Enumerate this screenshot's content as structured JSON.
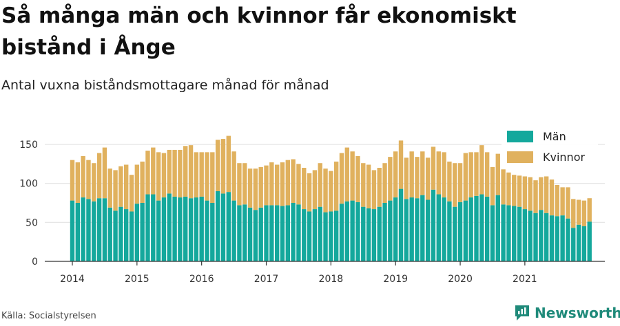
{
  "header": {
    "title": "Så många män och kvinnor får ekonomiskt bistånd i Ånge",
    "subtitle": "Antal vuxna biståndsmottagare månad för månad"
  },
  "footer": {
    "source": "Källa: Socialstyrelsen",
    "brand": "Newsworthy",
    "brand_icon": "bar-chart-logo-icon"
  },
  "colors": {
    "men": "#14a89c",
    "women": "#e0b15e",
    "axis": "#333333",
    "grid": "#e3e3e3"
  },
  "chart_data": {
    "type": "bar",
    "stacked": true,
    "x_unit": "month",
    "x_start": "2014-01",
    "xticks": [
      "2014",
      "2015",
      "2016",
      "2017",
      "2018",
      "2019",
      "2020",
      "2021"
    ],
    "yticks": [
      0,
      50,
      100,
      150
    ],
    "ylim": [
      0,
      165
    ],
    "grid": true,
    "legend_position": "top-right",
    "series": [
      {
        "name": "Män",
        "values": [
          78,
          75,
          82,
          80,
          77,
          81,
          81,
          69,
          65,
          70,
          67,
          64,
          74,
          75,
          86,
          86,
          78,
          82,
          87,
          83,
          82,
          83,
          81,
          82,
          83,
          78,
          75,
          90,
          87,
          89,
          78,
          72,
          73,
          69,
          66,
          69,
          72,
          72,
          72,
          71,
          72,
          75,
          73,
          67,
          64,
          67,
          70,
          63,
          64,
          65,
          74,
          77,
          78,
          76,
          70,
          68,
          67,
          70,
          75,
          78,
          82,
          93,
          80,
          82,
          81,
          85,
          79,
          92,
          86,
          82,
          77,
          70,
          76,
          78,
          82,
          84,
          86,
          83,
          72,
          85,
          73,
          72,
          71,
          70,
          67,
          65,
          62,
          66,
          62,
          59,
          58,
          59,
          55,
          43,
          47,
          45,
          51
        ]
      },
      {
        "name": "Kvinnor",
        "values": [
          52,
          52,
          53,
          50,
          49,
          58,
          65,
          50,
          52,
          52,
          57,
          47,
          50,
          53,
          56,
          60,
          62,
          57,
          56,
          60,
          61,
          65,
          68,
          58,
          57,
          62,
          65,
          66,
          70,
          72,
          63,
          54,
          53,
          50,
          53,
          52,
          51,
          55,
          52,
          56,
          58,
          56,
          52,
          53,
          49,
          50,
          56,
          56,
          52,
          63,
          65,
          69,
          63,
          59,
          56,
          56,
          50,
          50,
          51,
          56,
          59,
          62,
          53,
          59,
          53,
          56,
          54,
          55,
          55,
          58,
          51,
          56,
          50,
          61,
          58,
          56,
          63,
          57,
          49,
          53,
          45,
          42,
          40,
          40,
          42,
          43,
          42,
          42,
          47,
          46,
          40,
          36,
          40,
          37,
          32,
          33,
          30
        ]
      }
    ]
  }
}
